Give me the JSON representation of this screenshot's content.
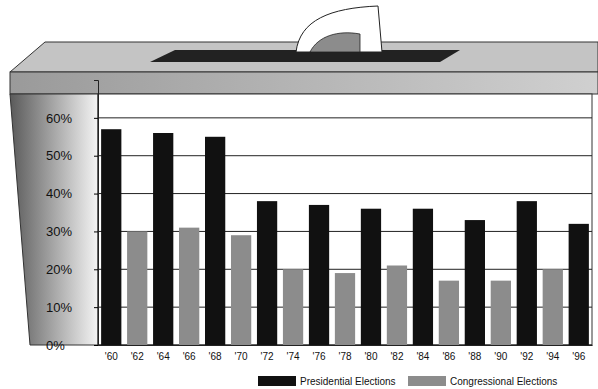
{
  "chart_data": {
    "type": "bar",
    "categories": [
      "'60",
      "'62",
      "'64",
      "'66",
      "'68",
      "'70",
      "'72",
      "'74",
      "'76",
      "'78",
      "'80",
      "'82",
      "'84",
      "'86",
      "'88",
      "'90",
      "'92",
      "'94",
      "'96"
    ],
    "series": [
      {
        "name": "Presidential Elections",
        "color": "#111111",
        "values": [
          57,
          null,
          56,
          null,
          55,
          null,
          38,
          null,
          37,
          null,
          36,
          null,
          36,
          null,
          33,
          null,
          38,
          null,
          32
        ]
      },
      {
        "name": "Congressional Elections",
        "color": "#8c8c8c",
        "values": [
          null,
          30,
          null,
          31,
          null,
          29,
          null,
          20,
          null,
          19,
          null,
          21,
          null,
          17,
          null,
          17,
          null,
          20,
          null
        ]
      }
    ],
    "ylim": [
      0,
      70
    ],
    "yticks": [
      {
        "value": 0,
        "label": "0%"
      },
      {
        "value": 10,
        "label": "10%"
      },
      {
        "value": 20,
        "label": "20%"
      },
      {
        "value": 30,
        "label": "30%"
      },
      {
        "value": 40,
        "label": "40%"
      },
      {
        "value": 50,
        "label": "50%"
      },
      {
        "value": 60,
        "label": "60%"
      }
    ],
    "grid": true,
    "legend": "bottom"
  }
}
